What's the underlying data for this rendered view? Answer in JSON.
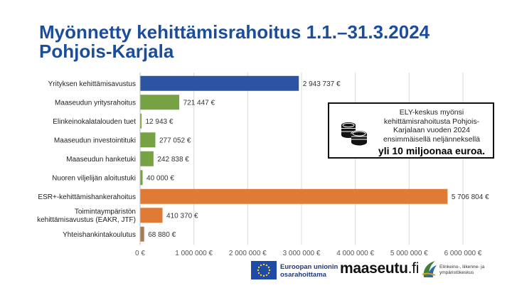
{
  "title_line1": "Myönnetty kehittämisrahoitus 1.1.–31.3.2024",
  "title_line2": "Pohjois-Karjala",
  "chart_data": {
    "type": "bar",
    "orientation": "horizontal",
    "categories": [
      [
        "Yrityksen kehittämisavustus"
      ],
      [
        "Maaseudun yritysrahoitus"
      ],
      [
        "Elinkeinokalatalouden tuet"
      ],
      [
        "Maaseudun investointituki"
      ],
      [
        "Maaseudun hanketuki"
      ],
      [
        "Nuoren viljelijän aloitustuki"
      ],
      [
        "ESR+-kehittämishankerahoitus"
      ],
      [
        "Toimintaympäristön",
        "kehittämisavustus (EAKR, JTF)"
      ],
      [
        "Yhteishankintakoulutus"
      ]
    ],
    "values": [
      2943737,
      721447,
      12943,
      277052,
      242838,
      40000,
      5706804,
      410370,
      68880
    ],
    "value_labels": [
      "2 943 737 €",
      "721 447 €",
      "12 943 €",
      "277 052 €",
      "242 838 €",
      "40 000 €",
      "5 706 804 €",
      "410 370 €",
      "68 880 €"
    ],
    "bar_colors": [
      "#2c54a3",
      "#76a244",
      "#76a244",
      "#76a244",
      "#76a244",
      "#76a244",
      "#e07b35",
      "#e07b35",
      "#a47e5a"
    ],
    "xlim": [
      0,
      6000000
    ],
    "xticks": [
      0,
      1000000,
      2000000,
      3000000,
      4000000,
      5000000,
      6000000
    ],
    "xtick_labels": [
      "0 €",
      "1 000 000 €",
      "2 000 000 €",
      "3 000 000 €",
      "4 000 000 €",
      "5 000 000 €",
      "6 000 000 €"
    ],
    "grid": true
  },
  "callout": {
    "text": "ELY-keskus myönsi kehittämisrahoitusta Pohjois-Karjalaan vuoden 2024 ensimmäisellä neljänneksellä",
    "bold": "yli 10 miljoonaa euroa.",
    "icon": "coins-icon"
  },
  "logos": {
    "eu_line1": "Euroopan unionin",
    "eu_line2": "osarahoittama",
    "maaseutu": "maaseutu",
    "maaseutu_suffix": ".fi",
    "ely_line1": "Elinkeino-, liikenne- ja",
    "ely_line2": "ympäristökeskus"
  }
}
